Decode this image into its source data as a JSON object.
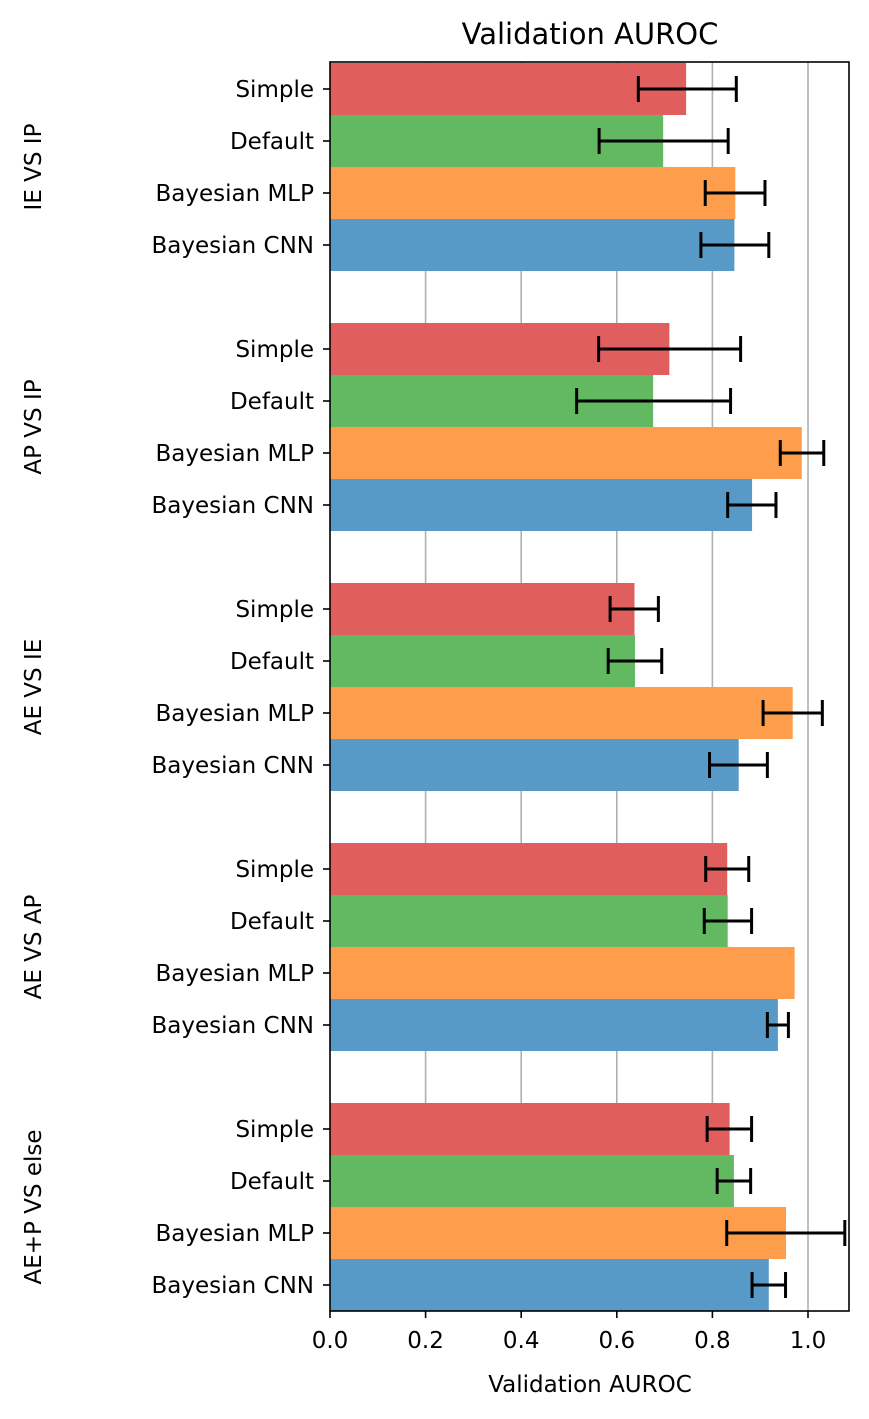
{
  "chart_data": {
    "type": "bar",
    "orientation": "horizontal",
    "title": "Validation AUROC",
    "xlabel": "Validation AUROC",
    "xlim": [
      0.0,
      1.085
    ],
    "xticks": [
      "0.0",
      "0.2",
      "0.4",
      "0.6",
      "0.8",
      "1.0"
    ],
    "grid": "vertical",
    "series_colors": {
      "Simple": "#e05e5e",
      "Default": "#62b962",
      "Bayesian MLP": "#fe9e4c",
      "Bayesian CNN": "#5799c7"
    },
    "categories": [
      "Simple",
      "Default",
      "Bayesian MLP",
      "Bayesian CNN"
    ],
    "groups": [
      {
        "name": "IE VS IP",
        "bars": [
          {
            "label": "Simple",
            "value": 0.745,
            "err": [
              0.645,
              0.85
            ]
          },
          {
            "label": "Default",
            "value": 0.697,
            "err": [
              0.563,
              0.833
            ]
          },
          {
            "label": "Bayesian MLP",
            "value": 0.848,
            "err": [
              0.785,
              0.91
            ]
          },
          {
            "label": "Bayesian CNN",
            "value": 0.846,
            "err": [
              0.776,
              0.918
            ]
          }
        ]
      },
      {
        "name": "AP VS IP",
        "bars": [
          {
            "label": "Simple",
            "value": 0.71,
            "err": [
              0.562,
              0.859
            ]
          },
          {
            "label": "Default",
            "value": 0.676,
            "err": [
              0.516,
              0.838
            ]
          },
          {
            "label": "Bayesian MLP",
            "value": 0.987,
            "err": [
              0.942,
              1.033
            ]
          },
          {
            "label": "Bayesian CNN",
            "value": 0.883,
            "err": [
              0.832,
              0.933
            ]
          }
        ]
      },
      {
        "name": "AE VS IE",
        "bars": [
          {
            "label": "Simple",
            "value": 0.637,
            "err": [
              0.586,
              0.687
            ]
          },
          {
            "label": "Default",
            "value": 0.638,
            "err": [
              0.582,
              0.694
            ]
          },
          {
            "label": "Bayesian MLP",
            "value": 0.968,
            "err": [
              0.906,
              1.03
            ]
          },
          {
            "label": "Bayesian CNN",
            "value": 0.855,
            "err": [
              0.794,
              0.915
            ]
          }
        ]
      },
      {
        "name": "AE VS AP",
        "bars": [
          {
            "label": "Simple",
            "value": 0.831,
            "err": [
              0.786,
              0.876
            ]
          },
          {
            "label": "Default",
            "value": 0.832,
            "err": [
              0.783,
              0.882
            ]
          },
          {
            "label": "Bayesian MLP",
            "value": 0.972,
            "err": null
          },
          {
            "label": "Bayesian CNN",
            "value": 0.937,
            "err": [
              0.915,
              0.959
            ]
          }
        ]
      },
      {
        "name": "AE+P VS else",
        "bars": [
          {
            "label": "Simple",
            "value": 0.836,
            "err": [
              0.789,
              0.882
            ]
          },
          {
            "label": "Default",
            "value": 0.845,
            "err": [
              0.81,
              0.88
            ]
          },
          {
            "label": "Bayesian MLP",
            "value": 0.954,
            "err": [
              0.83,
              1.077
            ]
          },
          {
            "label": "Bayesian CNN",
            "value": 0.918,
            "err": [
              0.883,
              0.953
            ]
          }
        ]
      }
    ]
  }
}
